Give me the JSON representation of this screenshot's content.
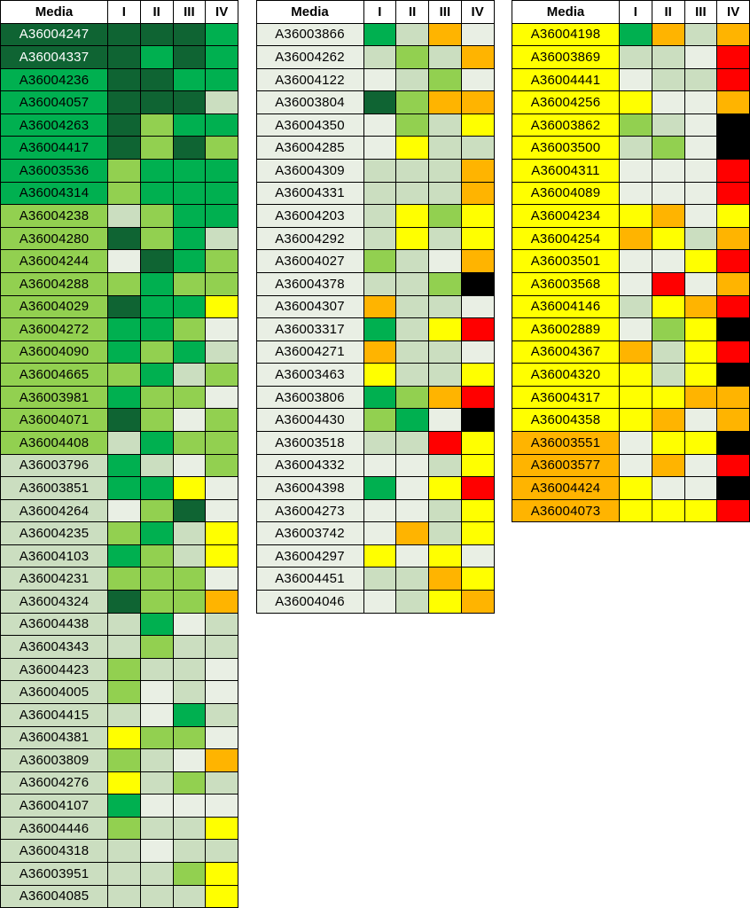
{
  "chart_data": {
    "type": "heatmap",
    "title": "",
    "column_headers": [
      "Media",
      "I",
      "II",
      "III",
      "IV"
    ],
    "value_encoding": "categorical color levels only; no numeric labels are shown in the figure",
    "row_format": [
      "media_id",
      "media_level",
      "level_I",
      "level_II",
      "level_III",
      "level_IV"
    ],
    "legend_position": "none",
    "grid": true,
    "color_levels": {
      "D": {
        "name": "dark-green",
        "hex": "#0F6433"
      },
      "G": {
        "name": "green",
        "hex": "#00B050"
      },
      "L": {
        "name": "light-green",
        "hex": "#92D050"
      },
      "P": {
        "name": "pale-green",
        "hex": "#CBDEC0"
      },
      "V": {
        "name": "very-pale-green",
        "hex": "#E9EFE4"
      },
      "Y": {
        "name": "yellow",
        "hex": "#FFFF00"
      },
      "O": {
        "name": "orange",
        "hex": "#FFB400"
      },
      "R": {
        "name": "red",
        "hex": "#FF0000"
      },
      "K": {
        "name": "black",
        "hex": "#000000"
      }
    },
    "panels": [
      {
        "rows": [
          [
            "A36004247",
            "D",
            "D",
            "D",
            "D",
            "G"
          ],
          [
            "A36004337",
            "D",
            "D",
            "G",
            "D",
            "G"
          ],
          [
            "A36004236",
            "G",
            "D",
            "D",
            "G",
            "G"
          ],
          [
            "A36004057",
            "G",
            "D",
            "D",
            "D",
            "P"
          ],
          [
            "A36004263",
            "G",
            "D",
            "L",
            "G",
            "G"
          ],
          [
            "A36004417",
            "G",
            "D",
            "L",
            "D",
            "L"
          ],
          [
            "A36003536",
            "G",
            "L",
            "G",
            "G",
            "G"
          ],
          [
            "A36004314",
            "G",
            "L",
            "G",
            "G",
            "G"
          ],
          [
            "A36004238",
            "L",
            "P",
            "L",
            "G",
            "G"
          ],
          [
            "A36004280",
            "L",
            "D",
            "L",
            "G",
            "P"
          ],
          [
            "A36004244",
            "L",
            "V",
            "D",
            "G",
            "L"
          ],
          [
            "A36004288",
            "L",
            "L",
            "G",
            "L",
            "L"
          ],
          [
            "A36004029",
            "L",
            "D",
            "G",
            "G",
            "Y"
          ],
          [
            "A36004272",
            "L",
            "G",
            "G",
            "L",
            "V"
          ],
          [
            "A36004090",
            "L",
            "G",
            "L",
            "G",
            "P"
          ],
          [
            "A36004665",
            "L",
            "L",
            "G",
            "P",
            "L"
          ],
          [
            "A36003981",
            "L",
            "G",
            "L",
            "L",
            "V"
          ],
          [
            "A36004071",
            "L",
            "D",
            "L",
            "V",
            "L"
          ],
          [
            "A36004408",
            "L",
            "P",
            "G",
            "L",
            "L"
          ],
          [
            "A36003796",
            "P",
            "G",
            "P",
            "V",
            "L"
          ],
          [
            "A36003851",
            "P",
            "G",
            "G",
            "Y",
            "V"
          ],
          [
            "A36004264",
            "P",
            "V",
            "L",
            "D",
            "V"
          ],
          [
            "A36004235",
            "P",
            "L",
            "G",
            "P",
            "Y"
          ],
          [
            "A36004103",
            "P",
            "G",
            "L",
            "P",
            "Y"
          ],
          [
            "A36004231",
            "P",
            "L",
            "L",
            "L",
            "V"
          ],
          [
            "A36004324",
            "P",
            "D",
            "L",
            "L",
            "O"
          ],
          [
            "A36004438",
            "P",
            "P",
            "G",
            "V",
            "P"
          ],
          [
            "A36004343",
            "P",
            "P",
            "L",
            "P",
            "P"
          ],
          [
            "A36004423",
            "P",
            "L",
            "P",
            "P",
            "V"
          ],
          [
            "A36004005",
            "P",
            "L",
            "V",
            "P",
            "V"
          ],
          [
            "A36004415",
            "P",
            "P",
            "V",
            "G",
            "P"
          ],
          [
            "A36004381",
            "P",
            "Y",
            "L",
            "L",
            "V"
          ],
          [
            "A36003809",
            "P",
            "L",
            "P",
            "V",
            "O"
          ],
          [
            "A36004276",
            "P",
            "Y",
            "P",
            "L",
            "P"
          ],
          [
            "A36004107",
            "P",
            "G",
            "V",
            "V",
            "V"
          ],
          [
            "A36004446",
            "P",
            "L",
            "P",
            "P",
            "Y"
          ],
          [
            "A36004318",
            "P",
            "P",
            "V",
            "P",
            "P"
          ],
          [
            "A36003951",
            "P",
            "P",
            "P",
            "L",
            "Y"
          ],
          [
            "A36004085",
            "P",
            "P",
            "P",
            "P",
            "Y"
          ]
        ]
      },
      {
        "rows": [
          [
            "A36003866",
            "V",
            "G",
            "P",
            "O",
            "V"
          ],
          [
            "A36004262",
            "V",
            "P",
            "L",
            "P",
            "O"
          ],
          [
            "A36004122",
            "V",
            "V",
            "P",
            "L",
            "V"
          ],
          [
            "A36003804",
            "V",
            "D",
            "L",
            "O",
            "O"
          ],
          [
            "A36004350",
            "V",
            "V",
            "L",
            "P",
            "Y"
          ],
          [
            "A36004285",
            "V",
            "V",
            "Y",
            "P",
            "P"
          ],
          [
            "A36004309",
            "V",
            "P",
            "P",
            "P",
            "O"
          ],
          [
            "A36004331",
            "V",
            "P",
            "P",
            "P",
            "O"
          ],
          [
            "A36004203",
            "V",
            "P",
            "Y",
            "L",
            "Y"
          ],
          [
            "A36004292",
            "V",
            "P",
            "Y",
            "P",
            "Y"
          ],
          [
            "A36004027",
            "V",
            "L",
            "P",
            "V",
            "O"
          ],
          [
            "A36004378",
            "V",
            "P",
            "P",
            "L",
            "K"
          ],
          [
            "A36004307",
            "V",
            "O",
            "P",
            "P",
            "V"
          ],
          [
            "A36003317",
            "V",
            "G",
            "P",
            "Y",
            "R"
          ],
          [
            "A36004271",
            "V",
            "O",
            "P",
            "P",
            "V"
          ],
          [
            "A36003463",
            "V",
            "Y",
            "P",
            "P",
            "Y"
          ],
          [
            "A36003806",
            "V",
            "G",
            "L",
            "O",
            "R"
          ],
          [
            "A36004430",
            "V",
            "L",
            "G",
            "V",
            "K"
          ],
          [
            "A36003518",
            "V",
            "P",
            "P",
            "R",
            "Y"
          ],
          [
            "A36004332",
            "V",
            "V",
            "V",
            "P",
            "Y"
          ],
          [
            "A36004398",
            "V",
            "G",
            "V",
            "Y",
            "R"
          ],
          [
            "A36004273",
            "V",
            "V",
            "V",
            "P",
            "Y"
          ],
          [
            "A36003742",
            "V",
            "V",
            "O",
            "P",
            "Y"
          ],
          [
            "A36004297",
            "V",
            "Y",
            "V",
            "Y",
            "V"
          ],
          [
            "A36004451",
            "V",
            "P",
            "P",
            "O",
            "Y"
          ],
          [
            "A36004046",
            "V",
            "V",
            "P",
            "Y",
            "O"
          ]
        ]
      },
      {
        "rows": [
          [
            "A36004198",
            "Y",
            "G",
            "O",
            "P",
            "O"
          ],
          [
            "A36003869",
            "Y",
            "P",
            "P",
            "V",
            "R"
          ],
          [
            "A36004441",
            "Y",
            "V",
            "P",
            "P",
            "R"
          ],
          [
            "A36004256",
            "Y",
            "Y",
            "V",
            "V",
            "O"
          ],
          [
            "A36003862",
            "Y",
            "L",
            "P",
            "V",
            "K"
          ],
          [
            "A36003500",
            "Y",
            "P",
            "L",
            "V",
            "K"
          ],
          [
            "A36004311",
            "Y",
            "V",
            "V",
            "V",
            "R"
          ],
          [
            "A36004089",
            "Y",
            "V",
            "V",
            "V",
            "R"
          ],
          [
            "A36004234",
            "Y",
            "Y",
            "O",
            "V",
            "Y"
          ],
          [
            "A36004254",
            "Y",
            "O",
            "Y",
            "P",
            "O"
          ],
          [
            "A36003501",
            "Y",
            "V",
            "V",
            "Y",
            "R"
          ],
          [
            "A36003568",
            "Y",
            "V",
            "R",
            "V",
            "O"
          ],
          [
            "A36004146",
            "Y",
            "P",
            "Y",
            "O",
            "R"
          ],
          [
            "A36002889",
            "Y",
            "V",
            "L",
            "Y",
            "K"
          ],
          [
            "A36004367",
            "Y",
            "O",
            "P",
            "Y",
            "R"
          ],
          [
            "A36004320",
            "Y",
            "Y",
            "P",
            "Y",
            "K"
          ],
          [
            "A36004317",
            "Y",
            "Y",
            "Y",
            "O",
            "O"
          ],
          [
            "A36004358",
            "Y",
            "Y",
            "O",
            "V",
            "O"
          ],
          [
            "A36003551",
            "O",
            "V",
            "Y",
            "Y",
            "K"
          ],
          [
            "A36003577",
            "O",
            "V",
            "O",
            "V",
            "R"
          ],
          [
            "A36004424",
            "O",
            "Y",
            "V",
            "V",
            "K"
          ],
          [
            "A36004073",
            "O",
            "Y",
            "Y",
            "Y",
            "R"
          ]
        ]
      }
    ]
  },
  "styles": {
    "header_bg": "#FFFFFF",
    "grid_color": "#000000",
    "dark_row_text": "#FFFFFF",
    "default_text": "#000000",
    "page_bg": "#FFFFFF"
  }
}
